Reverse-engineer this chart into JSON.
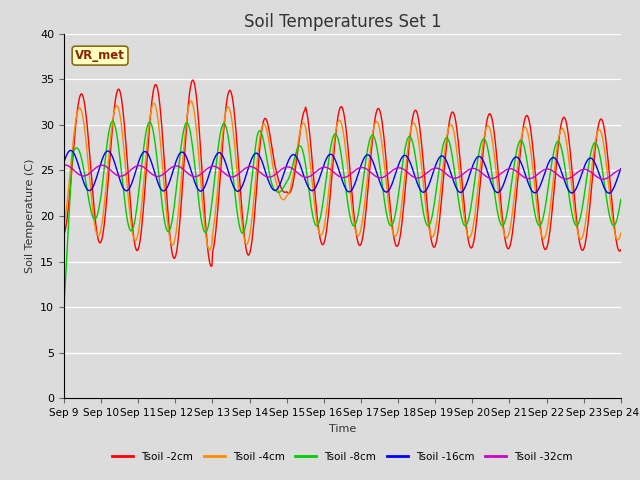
{
  "title": "Soil Temperatures Set 1",
  "xlabel": "Time",
  "ylabel": "Soil Temperature (C)",
  "ylim": [
    0,
    42
  ],
  "yticks": [
    0,
    5,
    10,
    15,
    20,
    25,
    30,
    35,
    40
  ],
  "annotation": "VR_met",
  "line_colors": {
    "Tsoil -2cm": "#ff0000",
    "Tsoil -4cm": "#ff8800",
    "Tsoil -8cm": "#00cc00",
    "Tsoil -16cm": "#0000ff",
    "Tsoil -32cm": "#cc00cc"
  },
  "legend_labels": [
    "Tsoil -2cm",
    "Tsoil -4cm",
    "Tsoil -8cm",
    "Tsoil -16cm",
    "Tsoil -32cm"
  ],
  "x_tick_labels": [
    "Sep 9",
    "Sep 10",
    "Sep 11",
    "Sep 12",
    "Sep 13",
    "Sep 14",
    "Sep 15",
    "Sep 16",
    "Sep 17",
    "Sep 18",
    "Sep 19",
    "Sep 20",
    "Sep 21",
    "Sep 22",
    "Sep 23",
    "Sep 24"
  ],
  "background_color": "#dcdcdc",
  "fig_background": "#dcdcdc",
  "title_fontsize": 12,
  "axis_label_fontsize": 8,
  "tick_fontsize": 7.5
}
